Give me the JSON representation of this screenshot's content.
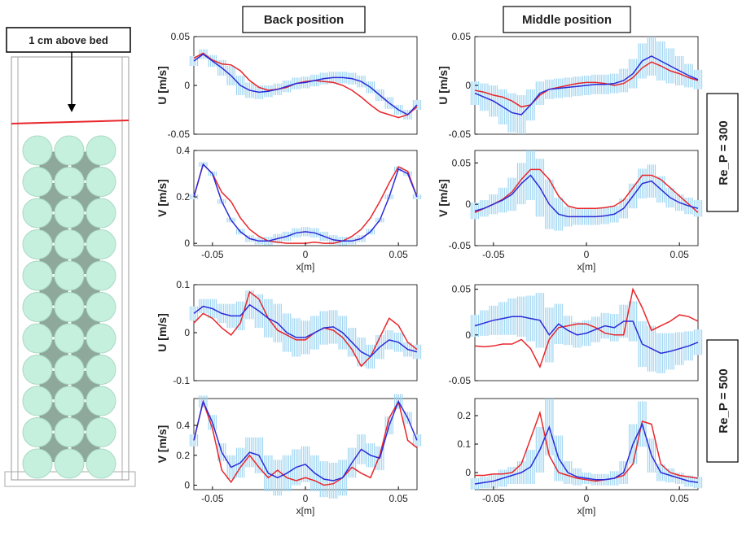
{
  "labels": {
    "bed_note": "1 cm above bed",
    "columns": [
      "Back position",
      "Middle position"
    ],
    "rows": [
      "Re_P = 300",
      "Re_P = 500"
    ]
  },
  "chart_data": [
    {
      "type": "line",
      "ylabel": "U [m/s]",
      "xlim": [
        -0.06,
        0.06
      ],
      "ylim": [
        -0.05,
        0.05
      ],
      "yticks": [
        -0.05,
        0,
        0.05
      ],
      "x": [
        -0.06,
        -0.055,
        -0.05,
        -0.045,
        -0.04,
        -0.035,
        -0.03,
        -0.025,
        -0.02,
        -0.015,
        -0.01,
        -0.005,
        0,
        0.005,
        0.01,
        0.015,
        0.02,
        0.025,
        0.03,
        0.035,
        0.04,
        0.045,
        0.05,
        0.055,
        0.06
      ],
      "series": [
        {
          "color": "#2b2bd9",
          "band_color": "#9fd6f2",
          "values": [
            0.025,
            0.032,
            0.025,
            0.018,
            0.01,
            0,
            -0.005,
            -0.007,
            -0.006,
            -0.004,
            -0.001,
            0.002,
            0.003,
            0.005,
            0.007,
            0.008,
            0.008,
            0.007,
            0.004,
            -0.002,
            -0.01,
            -0.018,
            -0.025,
            -0.03,
            -0.02
          ],
          "errors": [
            0.005,
            0.005,
            0.006,
            0.008,
            0.01,
            0.01,
            0.008,
            0.007,
            0.006,
            0.006,
            0.006,
            0.006,
            0.006,
            0.006,
            0.006,
            0.006,
            0.006,
            0.006,
            0.006,
            0.006,
            0.006,
            0.006,
            0.005,
            0.005,
            0.005
          ]
        },
        {
          "color": "#e8262b",
          "values": [
            0.028,
            0.033,
            0.026,
            0.022,
            0.021,
            0.015,
            0.005,
            -0.002,
            -0.005,
            -0.004,
            -0.002,
            0.002,
            0.004,
            0.005,
            0.004,
            0.003,
            0,
            -0.005,
            -0.012,
            -0.02,
            -0.027,
            -0.03,
            -0.033,
            -0.03,
            -0.022
          ]
        }
      ]
    },
    {
      "type": "line",
      "ylabel": "V [m/s]",
      "xlabel": "x[m]",
      "xlim": [
        -0.06,
        0.06
      ],
      "xticks": [
        -0.05,
        0,
        0.05
      ],
      "ylim": [
        -0.01,
        0.4
      ],
      "yticks": [
        0,
        0.2,
        0.4
      ],
      "x": [
        -0.06,
        -0.055,
        -0.05,
        -0.045,
        -0.04,
        -0.035,
        -0.03,
        -0.025,
        -0.02,
        -0.015,
        -0.01,
        -0.005,
        0,
        0.005,
        0.01,
        0.015,
        0.02,
        0.025,
        0.03,
        0.035,
        0.04,
        0.045,
        0.05,
        0.055,
        0.06
      ],
      "series": [
        {
          "color": "#2b2bd9",
          "band_color": "#9fd6f2",
          "values": [
            0.2,
            0.34,
            0.3,
            0.18,
            0.1,
            0.05,
            0.02,
            0.01,
            0.01,
            0.02,
            0.03,
            0.045,
            0.05,
            0.045,
            0.03,
            0.015,
            0.01,
            0.01,
            0.02,
            0.05,
            0.1,
            0.2,
            0.32,
            0.3,
            0.2
          ],
          "errors": [
            0.01,
            0.01,
            0.01,
            0.01,
            0.01,
            0.012,
            0.015,
            0.015,
            0.018,
            0.02,
            0.02,
            0.02,
            0.02,
            0.02,
            0.02,
            0.02,
            0.018,
            0.015,
            0.015,
            0.012,
            0.01,
            0.01,
            0.01,
            0.01,
            0.01
          ]
        },
        {
          "color": "#e8262b",
          "values": [
            0.2,
            0.34,
            0.3,
            0.22,
            0.18,
            0.11,
            0.06,
            0.03,
            0.01,
            0.005,
            0,
            0,
            0,
            0.005,
            0,
            0,
            0.01,
            0.03,
            0.06,
            0.11,
            0.18,
            0.26,
            0.33,
            0.31,
            0.2
          ]
        }
      ]
    },
    {
      "type": "line",
      "ylabel": "U [m/s]",
      "xlim": [
        -0.06,
        0.06
      ],
      "ylim": [
        -0.05,
        0.05
      ],
      "yticks": [
        -0.05,
        0,
        0.05
      ],
      "x": [
        -0.06,
        -0.055,
        -0.05,
        -0.045,
        -0.04,
        -0.035,
        -0.03,
        -0.025,
        -0.02,
        -0.015,
        -0.01,
        -0.005,
        0,
        0.005,
        0.01,
        0.015,
        0.02,
        0.025,
        0.03,
        0.035,
        0.04,
        0.045,
        0.05,
        0.055,
        0.06
      ],
      "series": [
        {
          "color": "#2b2bd9",
          "band_color": "#9fd6f2",
          "values": [
            -0.008,
            -0.012,
            -0.016,
            -0.022,
            -0.028,
            -0.03,
            -0.02,
            -0.008,
            -0.004,
            -0.003,
            -0.002,
            -0.001,
            0,
            0.001,
            0.001,
            0.002,
            0.005,
            0.012,
            0.025,
            0.03,
            0.025,
            0.02,
            0.015,
            0.01,
            0.006
          ],
          "errors": [
            0.012,
            0.014,
            0.016,
            0.018,
            0.02,
            0.02,
            0.016,
            0.012,
            0.01,
            0.01,
            0.01,
            0.01,
            0.01,
            0.01,
            0.01,
            0.01,
            0.012,
            0.015,
            0.018,
            0.02,
            0.02,
            0.018,
            0.015,
            0.012,
            0.01
          ]
        },
        {
          "color": "#e8262b",
          "values": [
            -0.005,
            -0.007,
            -0.01,
            -0.012,
            -0.016,
            -0.022,
            -0.02,
            -0.01,
            -0.004,
            -0.002,
            0,
            0.002,
            0.003,
            0.003,
            0.002,
            0,
            0.002,
            0.008,
            0.018,
            0.024,
            0.02,
            0.015,
            0.012,
            0.008,
            0.005
          ]
        }
      ]
    },
    {
      "type": "line",
      "ylabel": "V [m/s]",
      "xlabel": "x[m]",
      "xlim": [
        -0.06,
        0.06
      ],
      "xticks": [
        -0.05,
        0,
        0.05
      ],
      "ylim": [
        -0.05,
        0.065
      ],
      "yticks": [
        -0.05,
        0,
        0.05
      ],
      "x": [
        -0.06,
        -0.055,
        -0.05,
        -0.045,
        -0.04,
        -0.035,
        -0.03,
        -0.025,
        -0.02,
        -0.015,
        -0.01,
        -0.005,
        0,
        0.005,
        0.01,
        0.015,
        0.02,
        0.025,
        0.03,
        0.035,
        0.04,
        0.045,
        0.05,
        0.055,
        0.06
      ],
      "series": [
        {
          "color": "#2b2bd9",
          "band_color": "#9fd6f2",
          "values": [
            -0.008,
            -0.005,
            0,
            0.005,
            0.012,
            0.025,
            0.035,
            0.02,
            0,
            -0.012,
            -0.015,
            -0.015,
            -0.015,
            -0.015,
            -0.014,
            -0.012,
            -0.005,
            0.01,
            0.025,
            0.028,
            0.018,
            0.008,
            0.002,
            -0.002,
            -0.005
          ],
          "errors": [
            0.01,
            0.01,
            0.012,
            0.015,
            0.02,
            0.025,
            0.03,
            0.035,
            0.03,
            0.02,
            0.012,
            0.01,
            0.01,
            0.01,
            0.01,
            0.01,
            0.012,
            0.015,
            0.018,
            0.02,
            0.016,
            0.012,
            0.01,
            0.01,
            0.01
          ]
        },
        {
          "color": "#e8262b",
          "values": [
            -0.01,
            -0.005,
            0,
            0.006,
            0.015,
            0.03,
            0.042,
            0.042,
            0.03,
            0.01,
            -0.002,
            -0.005,
            -0.005,
            -0.005,
            -0.004,
            -0.002,
            0.005,
            0.02,
            0.035,
            0.035,
            0.03,
            0.02,
            0.01,
            0,
            -0.01
          ]
        }
      ]
    },
    {
      "type": "line",
      "ylabel": "U [m/s]",
      "xlim": [
        -0.06,
        0.06
      ],
      "ylim": [
        -0.1,
        0.1
      ],
      "yticks": [
        -0.1,
        0,
        0.1
      ],
      "x": [
        -0.06,
        -0.055,
        -0.05,
        -0.045,
        -0.04,
        -0.035,
        -0.03,
        -0.025,
        -0.02,
        -0.015,
        -0.01,
        -0.005,
        0,
        0.005,
        0.01,
        0.015,
        0.02,
        0.025,
        0.03,
        0.035,
        0.04,
        0.045,
        0.05,
        0.055,
        0.06
      ],
      "series": [
        {
          "color": "#2b2bd9",
          "band_color": "#9fd6f2",
          "values": [
            0.04,
            0.055,
            0.05,
            0.04,
            0.035,
            0.035,
            0.058,
            0.045,
            0.03,
            0.02,
            0,
            -0.01,
            -0.01,
            0,
            0.01,
            0.012,
            0,
            -0.02,
            -0.04,
            -0.05,
            -0.03,
            -0.015,
            -0.02,
            -0.035,
            -0.04
          ],
          "errors": [
            0.015,
            0.015,
            0.02,
            0.02,
            0.025,
            0.03,
            0.03,
            0.035,
            0.04,
            0.04,
            0.04,
            0.04,
            0.035,
            0.035,
            0.035,
            0.035,
            0.035,
            0.03,
            0.03,
            0.025,
            0.025,
            0.02,
            0.02,
            0.015,
            0.015
          ]
        },
        {
          "color": "#e8262b",
          "values": [
            0.02,
            0.04,
            0.03,
            0.01,
            -0.005,
            0.02,
            0.085,
            0.07,
            0.03,
            0.005,
            -0.005,
            -0.015,
            -0.015,
            0,
            0.01,
            0.005,
            -0.01,
            -0.035,
            -0.07,
            -0.05,
            -0.01,
            0.03,
            0.015,
            -0.02,
            -0.035
          ]
        }
      ]
    },
    {
      "type": "line",
      "ylabel": "V [m/s]",
      "xlabel": "x[m]",
      "xlim": [
        -0.06,
        0.06
      ],
      "xticks": [
        -0.05,
        0,
        0.05
      ],
      "ylim": [
        -0.03,
        0.58
      ],
      "yticks": [
        0,
        0.2,
        0.4
      ],
      "x": [
        -0.06,
        -0.055,
        -0.05,
        -0.045,
        -0.04,
        -0.035,
        -0.03,
        -0.025,
        -0.02,
        -0.015,
        -0.01,
        -0.005,
        0,
        0.005,
        0.01,
        0.015,
        0.02,
        0.025,
        0.03,
        0.035,
        0.04,
        0.045,
        0.05,
        0.055,
        0.06
      ],
      "series": [
        {
          "color": "#2b2bd9",
          "band_color": "#9fd6f2",
          "values": [
            0.3,
            0.56,
            0.42,
            0.22,
            0.12,
            0.15,
            0.22,
            0.2,
            0.08,
            0.05,
            0.08,
            0.12,
            0.14,
            0.08,
            0.04,
            0.03,
            0.05,
            0.15,
            0.24,
            0.2,
            0.18,
            0.4,
            0.56,
            0.45,
            0.3
          ],
          "errors": [
            0.04,
            0.04,
            0.05,
            0.06,
            0.08,
            0.1,
            0.1,
            0.12,
            0.12,
            0.12,
            0.12,
            0.12,
            0.12,
            0.12,
            0.12,
            0.12,
            0.12,
            0.1,
            0.1,
            0.08,
            0.08,
            0.06,
            0.05,
            0.04,
            0.04
          ]
        },
        {
          "color": "#e8262b",
          "values": [
            0.3,
            0.56,
            0.38,
            0.1,
            0.02,
            0.12,
            0.2,
            0.12,
            0.05,
            0.1,
            0.05,
            0.03,
            0.05,
            0.03,
            0,
            0.01,
            0.05,
            0.12,
            0.08,
            0.05,
            0.2,
            0.45,
            0.56,
            0.3,
            0.25
          ]
        }
      ]
    },
    {
      "type": "line",
      "ylabel": "",
      "xlim": [
        -0.06,
        0.06
      ],
      "ylim": [
        -0.05,
        0.055
      ],
      "yticks": [
        -0.05,
        0,
        0.05
      ],
      "x": [
        -0.06,
        -0.055,
        -0.05,
        -0.045,
        -0.04,
        -0.035,
        -0.03,
        -0.025,
        -0.02,
        -0.015,
        -0.01,
        -0.005,
        0,
        0.005,
        0.01,
        0.015,
        0.02,
        0.025,
        0.03,
        0.035,
        0.04,
        0.045,
        0.05,
        0.055,
        0.06
      ],
      "series": [
        {
          "color": "#2b2bd9",
          "band_color": "#9fd6f2",
          "values": [
            0.01,
            0.013,
            0.016,
            0.018,
            0.02,
            0.02,
            0.018,
            0.016,
            0,
            0.012,
            0.005,
            0,
            0.002,
            0.006,
            0.01,
            0.008,
            0.015,
            0.015,
            -0.01,
            -0.015,
            -0.02,
            -0.018,
            -0.015,
            -0.012,
            -0.008
          ],
          "errors": [
            0.012,
            0.014,
            0.016,
            0.018,
            0.02,
            0.022,
            0.025,
            0.03,
            0.03,
            0.022,
            0.016,
            0.014,
            0.014,
            0.014,
            0.014,
            0.015,
            0.018,
            0.022,
            0.025,
            0.025,
            0.022,
            0.02,
            0.018,
            0.016,
            0.014
          ]
        },
        {
          "color": "#e8262b",
          "values": [
            -0.012,
            -0.013,
            -0.012,
            -0.01,
            -0.01,
            -0.005,
            -0.015,
            -0.035,
            -0.005,
            0.008,
            0.01,
            0.012,
            0.012,
            0.008,
            0.002,
            0,
            0,
            0.05,
            0.03,
            0.005,
            0.01,
            0.015,
            0.022,
            0.02,
            0.015
          ]
        }
      ]
    },
    {
      "type": "line",
      "ylabel": "",
      "xlabel": "x[m]",
      "xlim": [
        -0.06,
        0.06
      ],
      "xticks": [
        -0.05,
        0,
        0.05
      ],
      "ylim": [
        -0.06,
        0.26
      ],
      "yticks": [
        0,
        0.1,
        0.2
      ],
      "x": [
        -0.06,
        -0.055,
        -0.05,
        -0.045,
        -0.04,
        -0.035,
        -0.03,
        -0.025,
        -0.02,
        -0.015,
        -0.01,
        -0.005,
        0,
        0.005,
        0.01,
        0.015,
        0.02,
        0.025,
        0.03,
        0.035,
        0.04,
        0.045,
        0.05,
        0.055,
        0.06
      ],
      "series": [
        {
          "color": "#2b2bd9",
          "band_color": "#9fd6f2",
          "values": [
            -0.04,
            -0.035,
            -0.03,
            -0.02,
            -0.01,
            0,
            0.02,
            0.08,
            0.16,
            0.05,
            0,
            -0.015,
            -0.02,
            -0.025,
            -0.025,
            -0.02,
            0,
            0.1,
            0.17,
            0.06,
            0,
            -0.01,
            -0.02,
            -0.03,
            -0.035
          ],
          "errors": [
            0.02,
            0.02,
            0.025,
            0.03,
            0.03,
            0.04,
            0.06,
            0.08,
            0.1,
            0.08,
            0.04,
            0.03,
            0.02,
            0.02,
            0.02,
            0.025,
            0.04,
            0.07,
            0.08,
            0.06,
            0.03,
            0.025,
            0.02,
            0.02,
            0.02
          ]
        },
        {
          "color": "#e8262b",
          "values": [
            -0.01,
            -0.01,
            -0.005,
            -0.005,
            0,
            0.03,
            0.12,
            0.21,
            0.06,
            0,
            -0.01,
            -0.02,
            -0.025,
            -0.03,
            -0.025,
            -0.02,
            -0.01,
            0.03,
            0.18,
            0.17,
            0.03,
            0,
            -0.01,
            -0.015,
            -0.02
          ]
        }
      ]
    }
  ]
}
